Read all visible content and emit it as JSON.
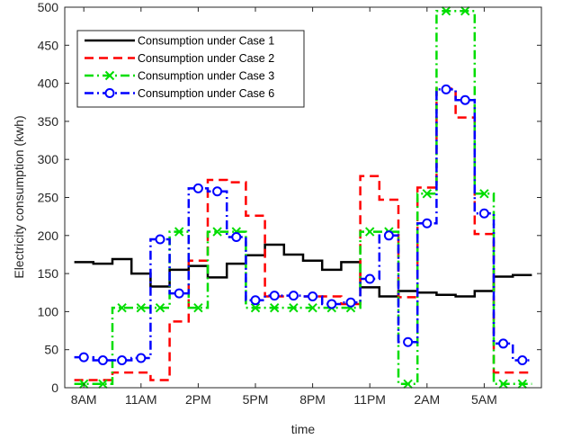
{
  "chart_data": {
    "type": "line",
    "step": true,
    "xlabel": "time",
    "ylabel": "Electricity consumption (kwh)",
    "x_tick_labels": [
      "8AM",
      "11AM",
      "2PM",
      "5PM",
      "8PM",
      "11PM",
      "2AM",
      "5AM"
    ],
    "x_tick_hours": [
      1,
      4,
      7,
      10,
      13,
      16,
      19,
      22
    ],
    "xlim": [
      0,
      25
    ],
    "ylim": [
      0,
      500
    ],
    "y_ticks": [
      0,
      50,
      100,
      150,
      200,
      250,
      300,
      350,
      400,
      450,
      500
    ],
    "legend_position": "top-left",
    "grid": false,
    "series": [
      {
        "name": "Consumption under Case 1",
        "color": "#000000",
        "style": "solid",
        "marker": "none",
        "values": [
          165,
          163,
          169,
          150,
          133,
          155,
          160,
          145,
          163,
          174,
          188,
          175,
          167,
          155,
          165,
          132,
          120,
          127,
          125,
          122,
          120,
          127,
          146,
          148
        ]
      },
      {
        "name": "Consumption under Case 2",
        "color": "#ff0000",
        "style": "dashed",
        "marker": "none",
        "values": [
          10,
          10,
          20,
          20,
          10,
          87,
          167,
          273,
          270,
          226,
          120,
          120,
          120,
          120,
          110,
          278,
          247,
          119,
          263,
          393,
          355,
          202,
          20,
          20
        ]
      },
      {
        "name": "Consumption under Case 3",
        "color": "#00dd00",
        "style": "dashdot",
        "marker": "x",
        "values": [
          5,
          5,
          105,
          105,
          105,
          205,
          105,
          205,
          205,
          105,
          105,
          105,
          105,
          105,
          105,
          205,
          205,
          5,
          255,
          495,
          495,
          255,
          5,
          5
        ]
      },
      {
        "name": "Consumption under Case 6",
        "color": "#0000ff",
        "style": "dashdot",
        "marker": "o",
        "values": [
          40,
          36,
          36,
          39,
          195,
          124,
          262,
          258,
          198,
          115,
          121,
          121,
          120,
          110,
          112,
          143,
          200,
          60,
          216,
          392,
          378,
          229,
          58,
          36
        ]
      }
    ]
  }
}
